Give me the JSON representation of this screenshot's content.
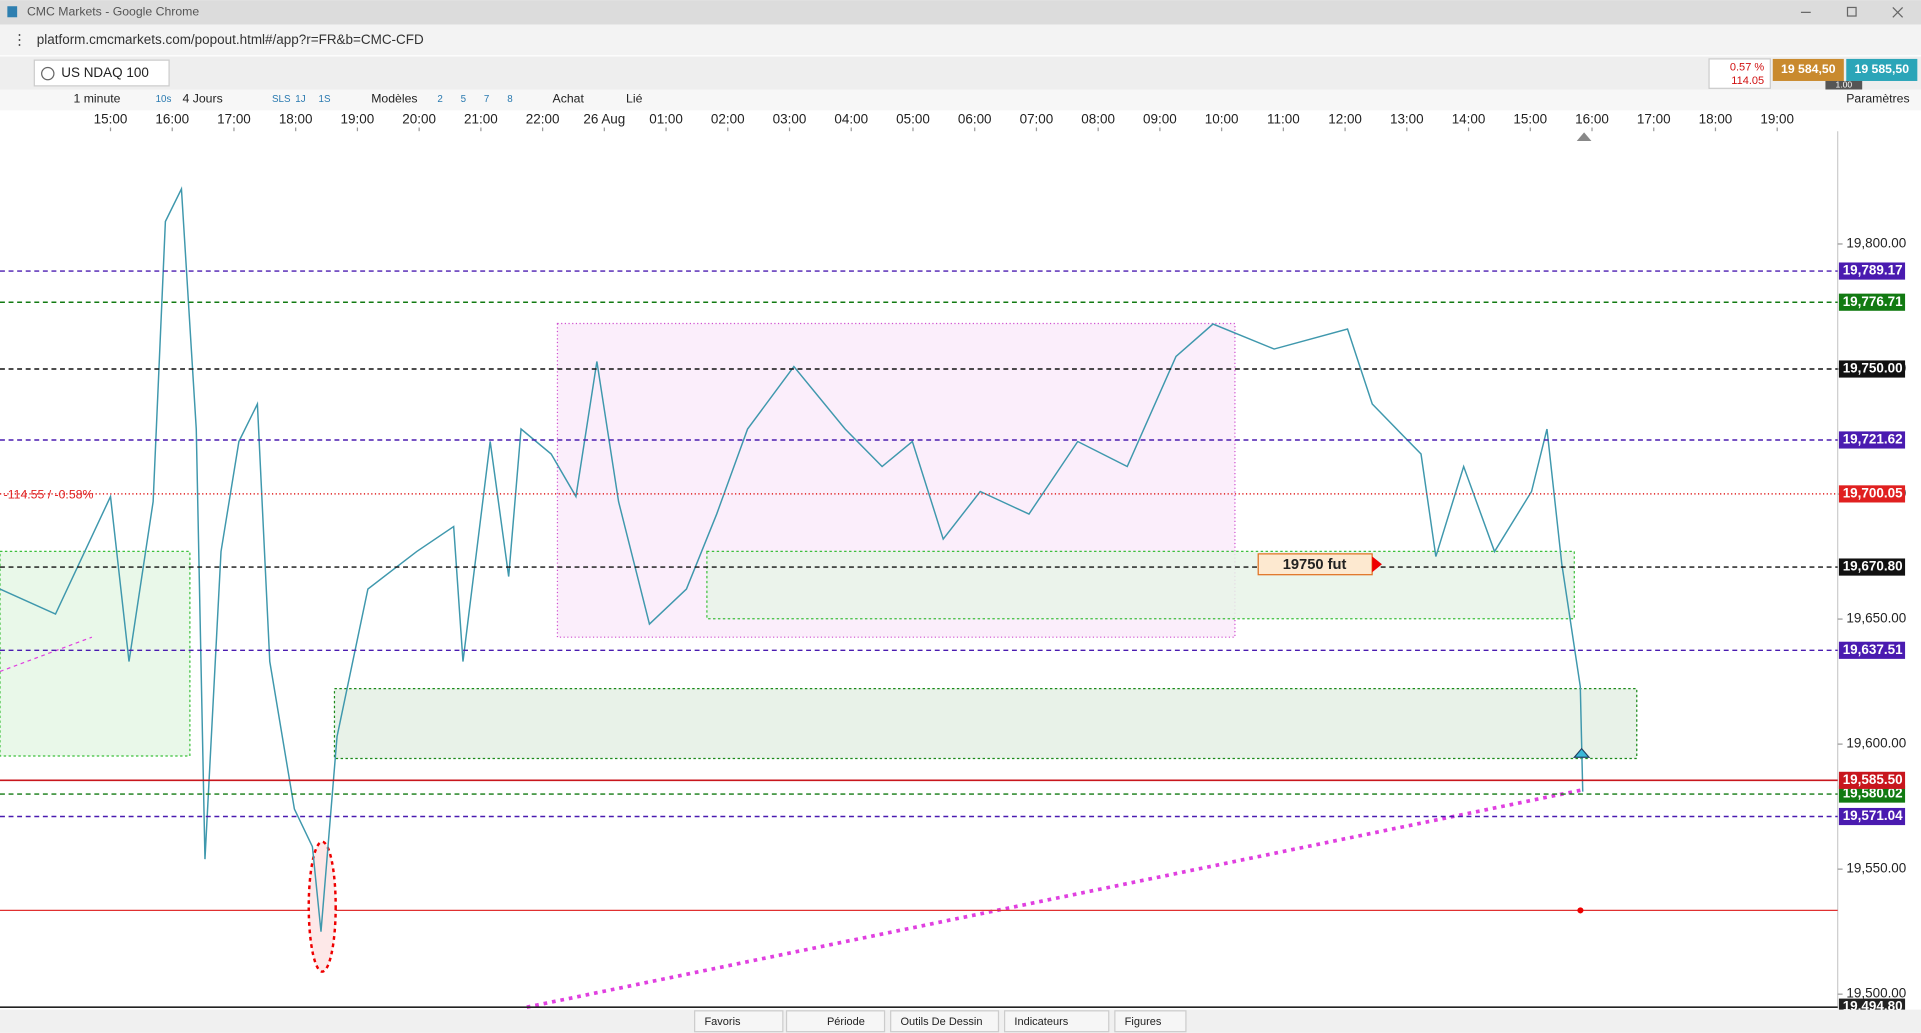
{
  "window": {
    "title": "CMC Markets - Google Chrome",
    "url": "platform.cmcmarkets.com/popout.html#/app?r=FR&b=CMC-CFD"
  },
  "instrument": {
    "name": "US NDAQ 100",
    "change_pct": "0.57 %",
    "change": "114.05",
    "sell": "19 584,50",
    "buy": "19 585,50",
    "spread": "1.00",
    "settings": "Paramètres"
  },
  "toolbar": {
    "interval": "1 minute",
    "interval_short": "10s",
    "range": "4 Jours",
    "ranges": [
      "SLS",
      "1J",
      "1S"
    ],
    "templates": "Modèles",
    "layouts": [
      "2",
      "5",
      "7",
      "8"
    ],
    "order": "Achat",
    "link": "Lié"
  },
  "bottom_tabs": [
    "Favoris",
    "Période",
    "Outils De Dessin",
    "Indicateurs",
    "Figures"
  ],
  "chart_data": {
    "type": "line",
    "xlim": [
      -1.79,
      27.98
    ],
    "xticks": [
      {
        "value": 0,
        "label": "15:00"
      },
      {
        "value": 1,
        "label": "16:00"
      },
      {
        "value": 2,
        "label": "17:00"
      },
      {
        "value": 3,
        "label": "18:00"
      },
      {
        "value": 4,
        "label": "19:00"
      },
      {
        "value": 5,
        "label": "20:00"
      },
      {
        "value": 6,
        "label": "21:00"
      },
      {
        "value": 7,
        "label": "22:00"
      },
      {
        "value": 8,
        "label": "26 Aug"
      },
      {
        "value": 9,
        "label": "01:00"
      },
      {
        "value": 10,
        "label": "02:00"
      },
      {
        "value": 11,
        "label": "03:00"
      },
      {
        "value": 12,
        "label": "04:00"
      },
      {
        "value": 13,
        "label": "05:00"
      },
      {
        "value": 14,
        "label": "06:00"
      },
      {
        "value": 15,
        "label": "07:00"
      },
      {
        "value": 16,
        "label": "08:00"
      },
      {
        "value": 17,
        "label": "09:00"
      },
      {
        "value": 18,
        "label": "10:00"
      },
      {
        "value": 19,
        "label": "11:00"
      },
      {
        "value": 20,
        "label": "12:00"
      },
      {
        "value": 21,
        "label": "13:00"
      },
      {
        "value": 22,
        "label": "14:00"
      },
      {
        "value": 23,
        "label": "15:00"
      },
      {
        "value": 24,
        "label": "16:00"
      },
      {
        "value": 25,
        "label": "17:00"
      },
      {
        "value": 26,
        "label": "18:00"
      },
      {
        "value": 27,
        "label": "19:00"
      }
    ],
    "ylim": [
      19494.8,
      19845.1
    ],
    "yticks": [
      {
        "value": 19800,
        "label": "19,800.00"
      },
      {
        "value": 19750,
        "label": "19,750.00"
      },
      {
        "value": 19700,
        "label": "19,700.00"
      },
      {
        "value": 19650,
        "label": "19,650.00"
      },
      {
        "value": 19600,
        "label": "19,600.00"
      },
      {
        "value": 19550,
        "label": "19,550.00"
      },
      {
        "value": 19500,
        "label": "19,500.00"
      }
    ],
    "series": [
      {
        "name": "US NDAQ 100",
        "color": "#3f98ad",
        "x": [
          -1.79,
          -0.89,
          0,
          0.3,
          0.69,
          0.89,
          1.15,
          1.39,
          1.53,
          1.79,
          2.08,
          2.38,
          2.58,
          2.98,
          3.27,
          3.41,
          3.67,
          4.17,
          4.96,
          5.56,
          5.71,
          6.15,
          6.45,
          6.65,
          7.14,
          7.54,
          7.88,
          8.23,
          8.73,
          9.33,
          9.82,
          10.32,
          11.07,
          11.9,
          12.5,
          12.99,
          13.49,
          14.09,
          14.88,
          15.67,
          16.47,
          17.26,
          17.86,
          18.85,
          20.04,
          20.44,
          21.23,
          21.47,
          21.92,
          22.42,
          23.02,
          23.27,
          23.51,
          23.81,
          23.85
        ],
        "values": [
          19662,
          19652,
          19699,
          19633,
          19697,
          19809,
          19822,
          19726,
          19554,
          19677,
          19721,
          19736,
          19633,
          19574,
          19559,
          19525,
          19603,
          19662,
          19677,
          19687,
          19633,
          19721,
          19667,
          19726,
          19716,
          19699,
          19753,
          19697,
          19648,
          19662,
          19692,
          19726,
          19751,
          19726,
          19711,
          19721,
          19682,
          19701,
          19692,
          19721,
          19711,
          19755,
          19768,
          19758,
          19766,
          19736,
          19716,
          19675,
          19711,
          19677,
          19701,
          19726,
          19672,
          19623,
          19581
        ]
      }
    ],
    "levels": [
      {
        "value": 19789.17,
        "label": "19,789.17",
        "color": "#4a1bb0",
        "style": "dashed"
      },
      {
        "value": 19776.71,
        "label": "19,776.71",
        "color": "#127a12",
        "style": "dashed"
      },
      {
        "value": 19750.0,
        "label": "19,750.00",
        "color": "#111111",
        "style": "dashed"
      },
      {
        "value": 19721.62,
        "label": "19,721.62",
        "color": "#4a1bb0",
        "style": "dashed"
      },
      {
        "value": 19700.05,
        "label": "19,700.05",
        "color": "#e02020",
        "style": "dotted"
      },
      {
        "value": 19670.8,
        "label": "19,670.80",
        "color": "#111111",
        "style": "dashed"
      },
      {
        "value": 19637.51,
        "label": "19,637.51",
        "color": "#4a1bb0",
        "style": "dashed"
      },
      {
        "value": 19580.02,
        "label": "19,580.02",
        "color": "#127a12",
        "style": "dashed"
      },
      {
        "value": 19571.04,
        "label": "19,571.04",
        "color": "#4a1bb0",
        "style": "dashed"
      },
      {
        "value": 19585.5,
        "label": "19,585.50",
        "color": "#c8161d",
        "style": "solid"
      },
      {
        "value": 19494.8,
        "label": "19,494.80",
        "color": "#222222",
        "style": "solid"
      }
    ],
    "annotations": [
      "-114.55 / -0.58%",
      "19750  fut"
    ]
  }
}
